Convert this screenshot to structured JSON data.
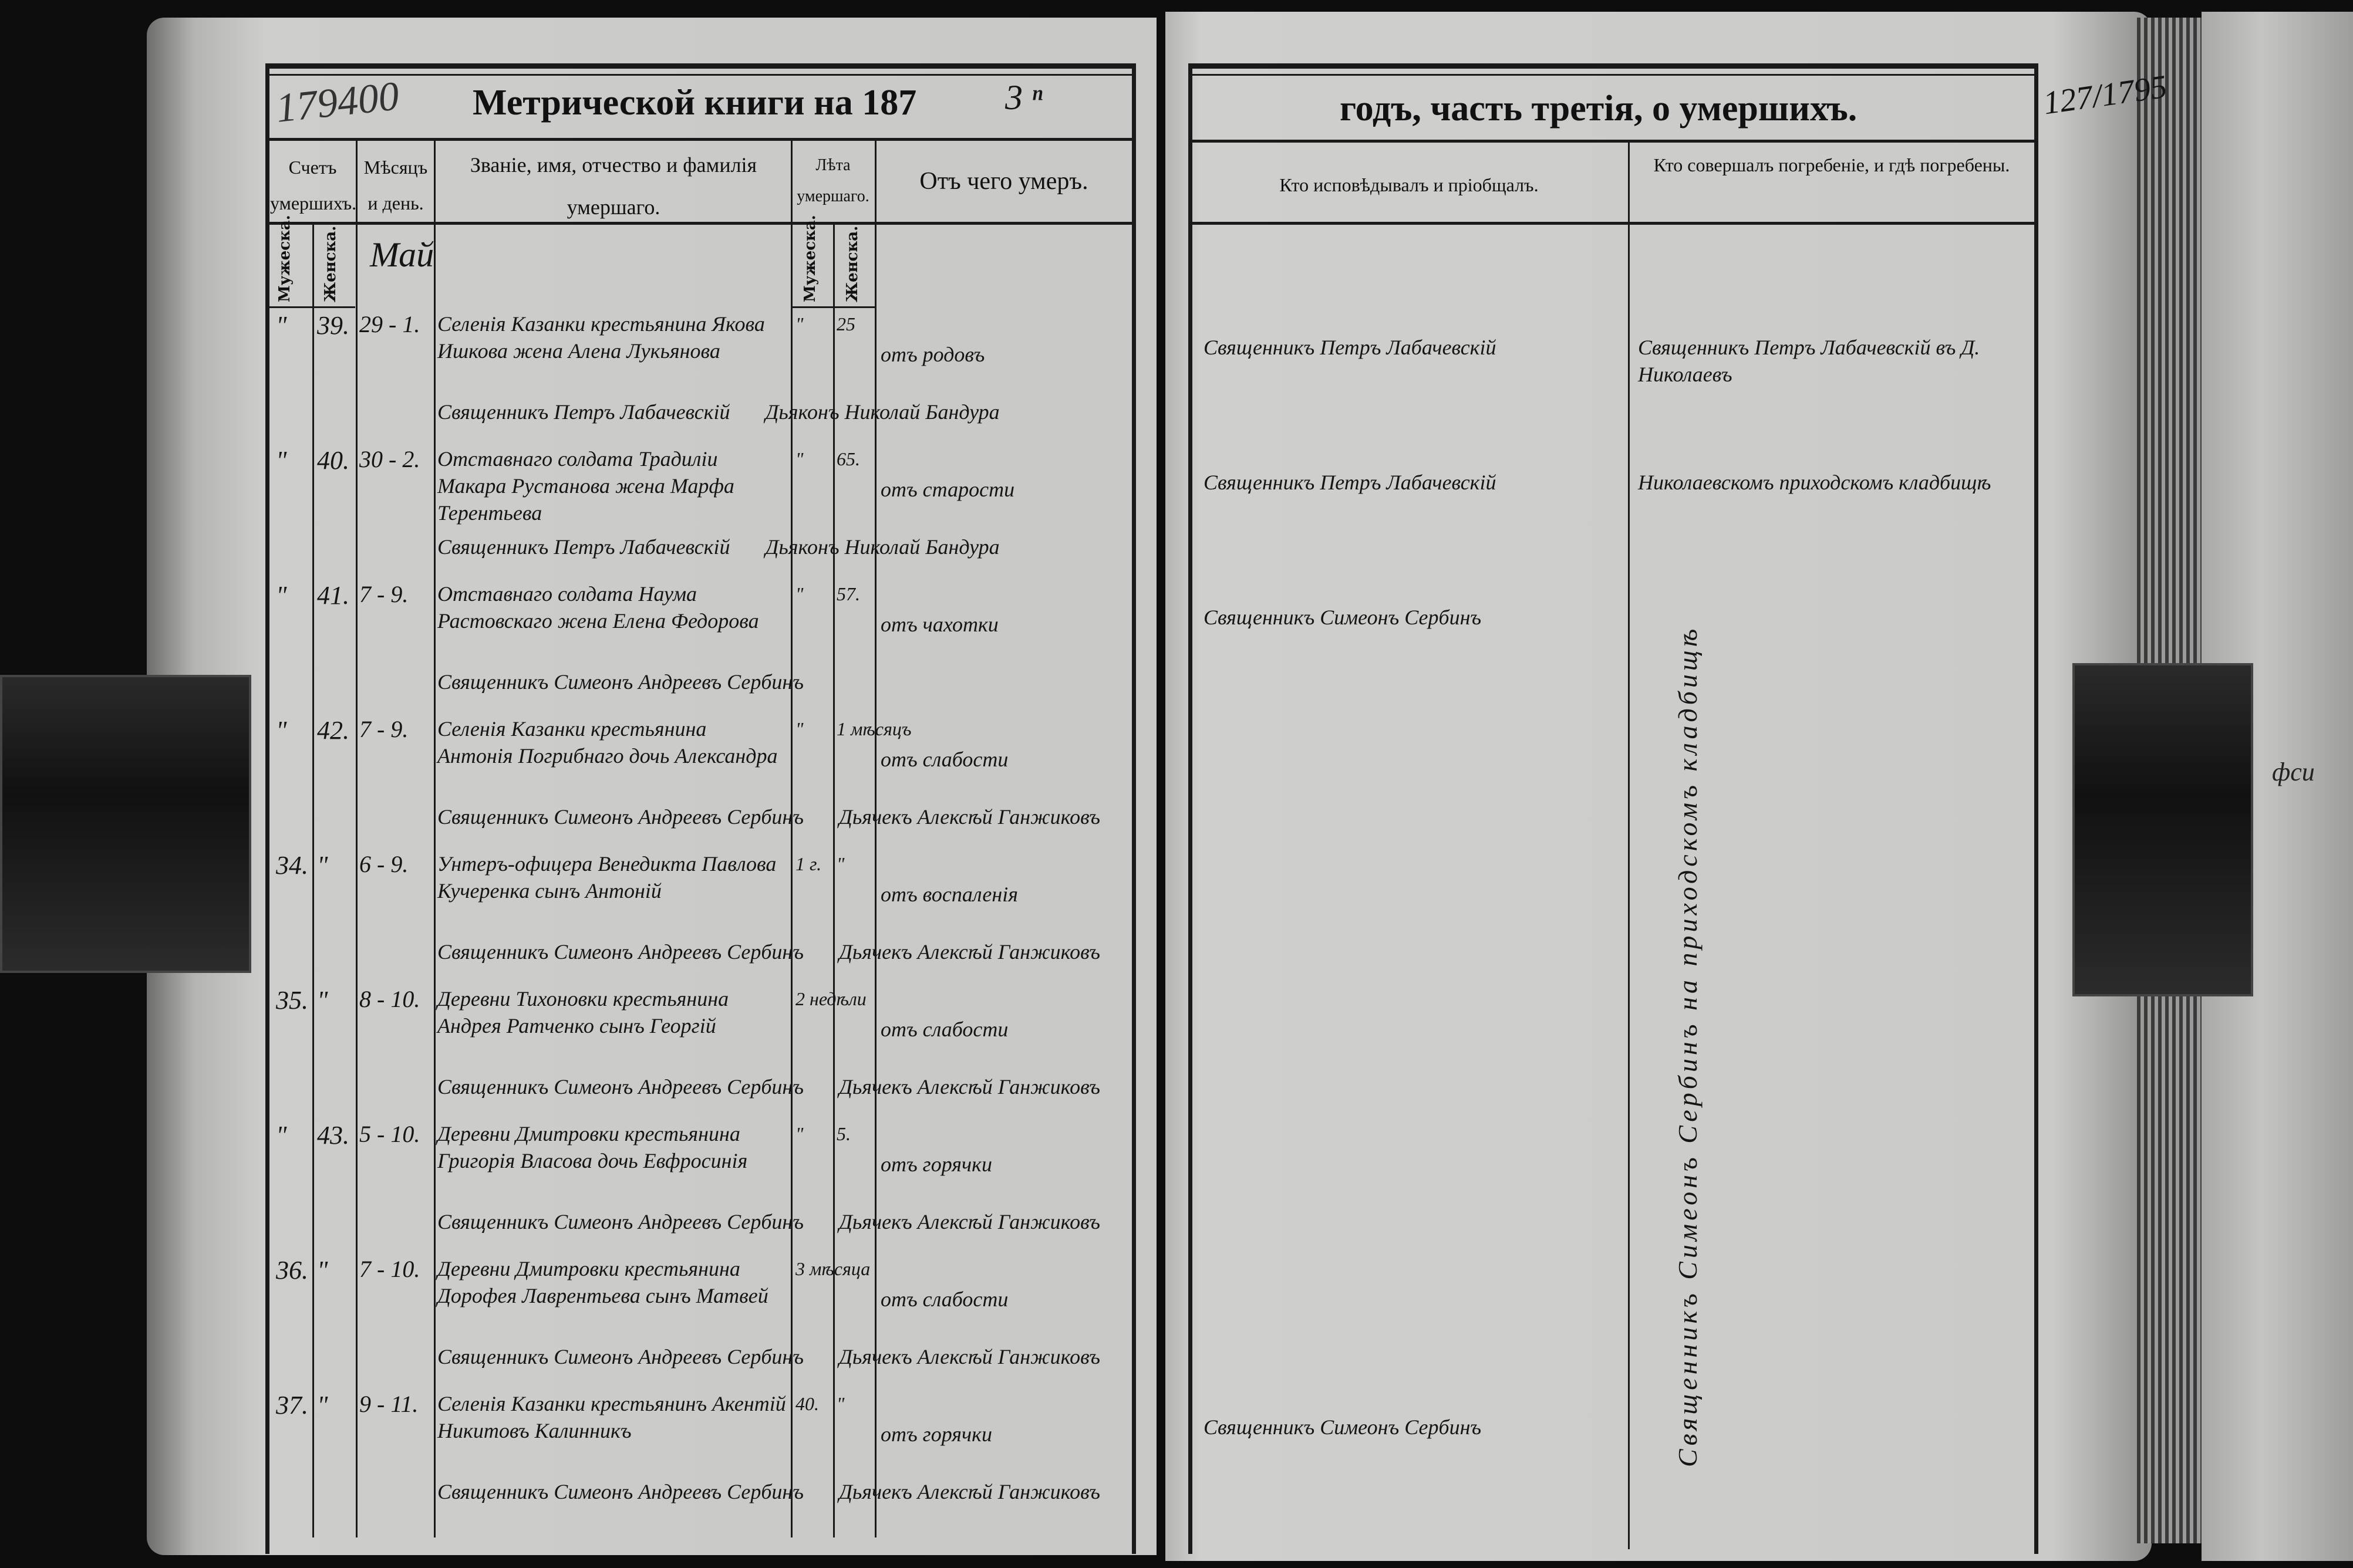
{
  "header": {
    "title_left": "Метрической книги на 187",
    "year_suffix_handwritten": "3 ⁿ",
    "title_right": "годъ, часть третія, о умершихъ.",
    "archive_number_left": "179400",
    "page_number_right": "127/1795"
  },
  "columns_left": {
    "count": "Счетъ умершихъ.",
    "month_day": "Мѣсяцъ и день.",
    "name": "Званіе, имя, отчество и фамилія умершаго.",
    "age": "Лѣта умершаго.",
    "cause": "Отъ чего умеръ.",
    "male": "Мужеска.",
    "female": "Женска."
  },
  "columns_right": {
    "confessor": "Кто исповѣдывалъ и пріобщалъ.",
    "burial": "Кто совершалъ погребеніе, и гдѣ погребены."
  },
  "month": "Май",
  "entries": [
    {
      "male": "\"",
      "female": "39.",
      "date": "29 - 1.",
      "name": "Селенія Казанки крестьянина Якова Ишкова жена Алена Лукьянова",
      "age_m": "\"",
      "age_f": "25",
      "cause": "отъ родовъ",
      "sign1": "Священникъ Петръ Лабачевскій",
      "sign2": "Дьяконъ Николай Бандура",
      "confessor": "Священникъ Петръ Лабачевскій",
      "burial": "Священникъ Петръ Лабачевскій въ Д. Николаевъ"
    },
    {
      "male": "\"",
      "female": "40.",
      "date": "30 - 2.",
      "name": "Отставнаго солдата Традиліи Макара Рустанова жена Марфа Терентьева",
      "age_m": "\"",
      "age_f": "65.",
      "cause": "отъ старости",
      "sign1": "Священникъ Петръ Лабачевскій",
      "sign2": "Дьяконъ Николай Бандура",
      "confessor": "Священникъ Петръ Лабачевскій",
      "burial": "Николаевскомъ приходскомъ кладбищѣ"
    },
    {
      "male": "\"",
      "female": "41.",
      "date": "7 - 9.",
      "name": "Отставнаго солдата Наума Растовскаго жена Елена Федорова",
      "age_m": "\"",
      "age_f": "57.",
      "cause": "отъ чахотки",
      "sign1": "Священникъ Симеонъ Андреевъ Сербинъ",
      "sign2": "",
      "confessor": "Священникъ Симеонъ Сербинъ",
      "burial": ""
    },
    {
      "male": "\"",
      "female": "42.",
      "date": "7 - 9.",
      "name": "Селенія Казанки крестьянина Антонія Погрибнаго дочь Александра",
      "age_m": "\"",
      "age_f": "1 мѣсяцъ",
      "cause": "отъ слабости",
      "sign1": "Священникъ Симеонъ Андреевъ Сербинъ",
      "sign2": "Дьячекъ Алексѣй Ганжиковъ",
      "confessor": "",
      "burial": ""
    },
    {
      "male": "34.",
      "female": "\"",
      "date": "6 - 9.",
      "name": "Унтеръ-офицера Венедикта Павлова Кучеренка сынъ Антоній",
      "age_m": "1 г.",
      "age_f": "\"",
      "cause": "отъ воспаленія",
      "sign1": "Священникъ Симеонъ Андреевъ Сербинъ",
      "sign2": "Дьячекъ Алексѣй Ганжиковъ",
      "confessor": "",
      "burial": ""
    },
    {
      "male": "35.",
      "female": "\"",
      "date": "8 - 10.",
      "name": "Деревни Тихоновки крестьянина Андрея Ратченко сынъ Георгій",
      "age_m": "2 недѣли",
      "age_f": "",
      "cause": "отъ слабости",
      "sign1": "Священникъ Симеонъ Андреевъ Сербинъ",
      "sign2": "Дьячекъ Алексѣй Ганжиковъ",
      "confessor": "",
      "burial": ""
    },
    {
      "male": "\"",
      "female": "43.",
      "date": "5 - 10.",
      "name": "Деревни Дмитровки крестьянина Григорія Власова дочь Евфросинія",
      "age_m": "\"",
      "age_f": "5.",
      "cause": "отъ горячки",
      "sign1": "Священникъ Симеонъ Андреевъ Сербинъ",
      "sign2": "Дьячекъ Алексѣй Ганжиковъ",
      "confessor": "",
      "burial": ""
    },
    {
      "male": "36.",
      "female": "\"",
      "date": "7 - 10.",
      "name": "Деревни Дмитровки крестьянина Дорофея Лаврентьева сынъ Матвей",
      "age_m": "3 мѣсяца",
      "age_f": "",
      "cause": "отъ слабости",
      "sign1": "Священникъ Симеонъ Андреевъ Сербинъ",
      "sign2": "Дьячекъ Алексѣй Ганжиковъ",
      "confessor": "",
      "burial": ""
    },
    {
      "male": "37.",
      "female": "\"",
      "date": "9 - 11.",
      "name": "Селенія Казанки крестьянинъ Акентій Никитовъ Калинникъ",
      "age_m": "40.",
      "age_f": "\"",
      "cause": "отъ горячки",
      "sign1": "Священникъ Симеонъ Андреевъ Сербинъ",
      "sign2": "Дьячекъ Алексѣй Ганжиковъ",
      "confessor": "Священникъ Симеонъ Сербинъ",
      "burial": ""
    }
  ],
  "burial_vertical_note": "Священникъ Симеонъ Сербинъ на приходскомъ кладбищѣ",
  "margin_note_right": "фси"
}
